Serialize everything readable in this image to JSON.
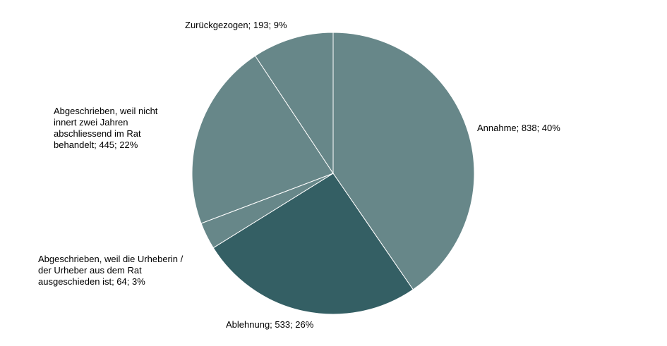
{
  "chart_data": {
    "type": "pie",
    "title": "",
    "start_angle_deg": 0,
    "direction": "clockwise",
    "slices": [
      {
        "category": "Annahme",
        "value": 838,
        "percent": "40%",
        "label_lines": [
          "Annahme; 838; 40%"
        ],
        "color": "#678789"
      },
      {
        "category": "Ablehnung",
        "value": 533,
        "percent": "26%",
        "label_lines": [
          "Ablehnung; 533; 26%"
        ],
        "color": "#345F64"
      },
      {
        "category": "Abgeschrieben, weil die Urheberin / der Urheber aus dem Rat ausgeschieden ist",
        "value": 64,
        "percent": "3%",
        "label_lines": [
          "Abgeschrieben, weil die Urheberin /",
          "der Urheber aus dem Rat",
          "ausgeschieden ist; 64; 3%"
        ],
        "color": "#678789"
      },
      {
        "category": "Abgeschrieben, weil nicht innert zwei Jahren abschliessend im Rat behandelt",
        "value": 445,
        "percent": "22%",
        "label_lines": [
          "Abgeschrieben, weil nicht",
          "innert zwei  Jahren",
          "abschliessend im Rat",
          "behandelt; 445; 22%"
        ],
        "color": "#678789"
      },
      {
        "category": "Zurückgezogen",
        "value": 193,
        "percent": "9%",
        "label_lines": [
          "Zurückgezogen; 193; 9%"
        ],
        "color": "#678789"
      }
    ]
  }
}
